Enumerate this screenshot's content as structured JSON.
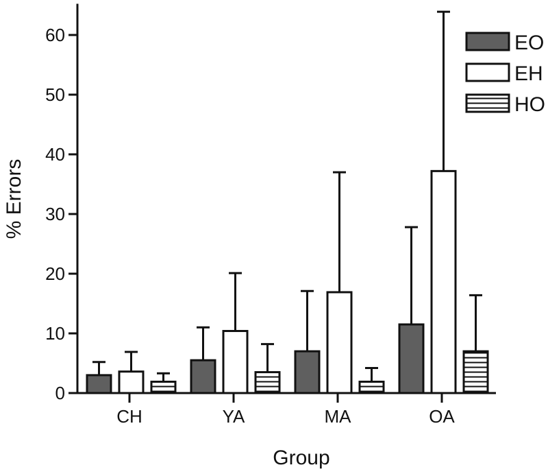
{
  "chart_data": {
    "type": "bar",
    "title": "",
    "xlabel": "Group",
    "ylabel": "% Errors",
    "categories": [
      "CH",
      "YA",
      "MA",
      "OA"
    ],
    "ylim": [
      0,
      65
    ],
    "yticks": [
      0,
      10,
      20,
      30,
      40,
      50,
      60
    ],
    "error_bars": "upper",
    "legend_position": "top-right",
    "series": [
      {
        "name": "EO",
        "fill": "#5f5f5f",
        "pattern": "solid",
        "values": [
          3.0,
          5.5,
          7.0,
          11.5
        ],
        "errors": [
          2.2,
          5.5,
          10.1,
          16.3
        ]
      },
      {
        "name": "EH",
        "fill": "#ffffff",
        "pattern": "none",
        "values": [
          3.6,
          10.4,
          16.9,
          37.2
        ],
        "errors": [
          3.3,
          9.7,
          20.1,
          26.7
        ]
      },
      {
        "name": "HO",
        "fill": "#ffffff",
        "pattern": "horizontal-lines",
        "values": [
          1.9,
          3.5,
          1.9,
          7.0
        ],
        "errors": [
          1.4,
          4.7,
          2.3,
          9.4
        ]
      }
    ]
  }
}
